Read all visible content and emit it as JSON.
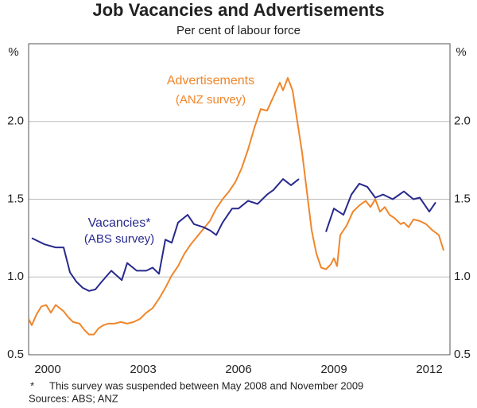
{
  "chart_data": {
    "type": "line",
    "title": "Job Vacancies and Advertisements",
    "subtitle": "Per cent of labour force",
    "y_unit": "%",
    "y2_unit": "%",
    "xlim": [
      1999.9,
      2013.15
    ],
    "xticks": [
      {
        "value": 2000.5,
        "label": "2000"
      },
      {
        "value": 2003.5,
        "label": "2003"
      },
      {
        "value": 2006.5,
        "label": "2006"
      },
      {
        "value": 2009.5,
        "label": "2009"
      },
      {
        "value": 2012.5,
        "label": "2012"
      }
    ],
    "ylim": [
      0.5,
      2.5
    ],
    "yticks": [
      0.5,
      {
        "value": 1,
        "label": "1.0"
      },
      1.5,
      {
        "value": 2,
        "label": "2.0"
      }
    ],
    "y2lim": [
      0.5,
      2.5
    ],
    "y2ticks": [
      0.5,
      {
        "value": 1,
        "label": "1.0"
      },
      1.5,
      {
        "value": 2,
        "label": "2.0"
      }
    ],
    "grid": true,
    "series": [
      {
        "name": "Advertisements",
        "sublabel": "(ANZ survey)",
        "color": "#f0862a",
        "x": [
          1999.9,
          2000.0,
          2000.15,
          2000.3,
          2000.45,
          2000.6,
          2000.75,
          2001.0,
          2001.15,
          2001.3,
          2001.5,
          2001.65,
          2001.8,
          2001.95,
          2002.1,
          2002.25,
          2002.4,
          2002.6,
          2002.8,
          2003.0,
          2003.2,
          2003.4,
          2003.6,
          2003.8,
          2004.0,
          2004.2,
          2004.4,
          2004.6,
          2004.8,
          2005.0,
          2005.2,
          2005.4,
          2005.6,
          2005.8,
          2006.0,
          2006.2,
          2006.4,
          2006.6,
          2006.8,
          2007.0,
          2007.2,
          2007.4,
          2007.6,
          2007.8,
          2007.9,
          2008.05,
          2008.2,
          2008.35,
          2008.5,
          2008.65,
          2008.8,
          2008.95,
          2009.1,
          2009.25,
          2009.4,
          2009.5,
          2009.6,
          2009.7,
          2009.9,
          2010.1,
          2010.3,
          2010.5,
          2010.65,
          2010.8,
          2010.95,
          2011.1,
          2011.25,
          2011.4,
          2011.6,
          2011.7,
          2011.85,
          2012.0,
          2012.2,
          2012.4,
          2012.6,
          2012.8,
          2012.95
        ],
        "values": [
          0.73,
          0.69,
          0.76,
          0.81,
          0.82,
          0.77,
          0.82,
          0.78,
          0.74,
          0.71,
          0.7,
          0.66,
          0.63,
          0.63,
          0.67,
          0.69,
          0.7,
          0.7,
          0.71,
          0.7,
          0.71,
          0.73,
          0.77,
          0.8,
          0.86,
          0.93,
          1.01,
          1.07,
          1.15,
          1.21,
          1.26,
          1.31,
          1.36,
          1.44,
          1.5,
          1.55,
          1.61,
          1.7,
          1.82,
          1.96,
          2.08,
          2.07,
          2.16,
          2.25,
          2.2,
          2.28,
          2.2,
          2.0,
          1.8,
          1.55,
          1.3,
          1.15,
          1.06,
          1.05,
          1.08,
          1.12,
          1.07,
          1.27,
          1.33,
          1.42,
          1.46,
          1.49,
          1.45,
          1.5,
          1.42,
          1.45,
          1.4,
          1.38,
          1.34,
          1.35,
          1.32,
          1.37,
          1.36,
          1.34,
          1.3,
          1.27,
          1.17
        ]
      },
      {
        "name": "Vacancies*",
        "sublabel": "(ABS survey)",
        "color": "#272a8c",
        "x": [
          2000.0,
          2000.4,
          2000.75,
          2001.0,
          2001.2,
          2001.4,
          2001.6,
          2001.8,
          2002.0,
          2002.2,
          2002.5,
          2002.83,
          2003.0,
          2003.3,
          2003.6,
          2003.8,
          2004.0,
          2004.2,
          2004.4,
          2004.6,
          2004.9,
          2005.1,
          2005.4,
          2005.6,
          2005.8,
          2006.0,
          2006.3,
          2006.5,
          2006.8,
          2007.1,
          2007.4,
          2007.6,
          2007.9,
          2008.15,
          2008.4,
          2009.0,
          2009.25,
          2009.5,
          2009.8,
          2010.05,
          2010.3,
          2010.55,
          2010.8,
          2011.05,
          2011.35,
          2011.7,
          2012.0,
          2012.2,
          2012.5,
          2012.7
        ],
        "values": [
          1.25,
          1.21,
          1.19,
          1.19,
          1.03,
          0.97,
          0.93,
          0.91,
          0.92,
          0.97,
          1.04,
          0.98,
          1.09,
          1.04,
          1.04,
          1.06,
          1.02,
          1.24,
          1.22,
          1.35,
          1.4,
          1.34,
          1.32,
          1.3,
          1.27,
          1.35,
          1.44,
          1.44,
          1.49,
          1.47,
          1.53,
          1.56,
          1.63,
          1.59,
          1.63,
          null,
          1.29,
          1.44,
          1.4,
          1.53,
          1.6,
          1.58,
          1.51,
          1.53,
          1.5,
          1.55,
          1.5,
          1.51,
          1.42,
          1.48
        ]
      }
    ],
    "footnote": {
      "marker": "*",
      "text": "This survey was suspended between May 2008 and November 2009"
    },
    "source": "Sources: ABS; ANZ"
  }
}
